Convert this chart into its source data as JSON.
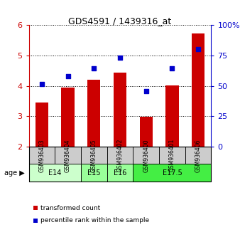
{
  "title": "GDS4591 / 1439316_at",
  "samples": [
    "GSM936403",
    "GSM936404",
    "GSM936405",
    "GSM936402",
    "GSM936400",
    "GSM936401",
    "GSM936406"
  ],
  "bar_values": [
    3.45,
    3.95,
    4.2,
    4.45,
    2.98,
    4.02,
    5.72
  ],
  "bar_bottom": 2.0,
  "dot_values": [
    4.07,
    4.32,
    4.57,
    4.92,
    3.82,
    4.57,
    5.22
  ],
  "ylim_left": [
    2,
    6
  ],
  "ylim_right": [
    0,
    100
  ],
  "yticks_left": [
    2,
    3,
    4,
    5,
    6
  ],
  "yticks_right": [
    0,
    25,
    50,
    75,
    100
  ],
  "ytick_labels_right": [
    "0",
    "25",
    "50",
    "75",
    "100%"
  ],
  "bar_color": "#cc0000",
  "dot_color": "#0000cc",
  "legend_bar_label": "transformed count",
  "legend_dot_label": "percentile rank within the sample",
  "plot_bg": "#ffffff",
  "sample_bg": "#cccccc",
  "age_groups": [
    {
      "label": "E14",
      "indices": [
        0,
        1
      ],
      "color": "#ccffcc"
    },
    {
      "label": "E15",
      "indices": [
        2
      ],
      "color": "#99ff99"
    },
    {
      "label": "E16",
      "indices": [
        3
      ],
      "color": "#99ff99"
    },
    {
      "label": "E17.5",
      "indices": [
        4,
        5,
        6
      ],
      "color": "#44ee44"
    }
  ]
}
